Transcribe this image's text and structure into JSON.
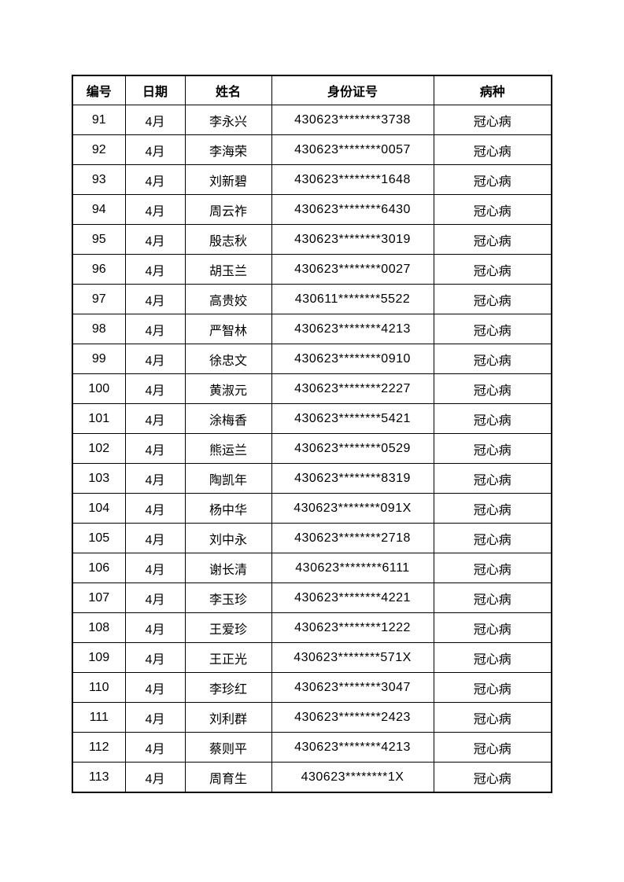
{
  "table": {
    "headers": [
      "编号",
      "日期",
      "姓名",
      "身份证号",
      "病种"
    ],
    "rows": [
      [
        "91",
        "4月",
        "李永兴",
        "430623********3738",
        "冠心病"
      ],
      [
        "92",
        "4月",
        "李海荣",
        "430623********0057",
        "冠心病"
      ],
      [
        "93",
        "4月",
        "刘新碧",
        "430623********1648",
        "冠心病"
      ],
      [
        "94",
        "4月",
        "周云祚",
        "430623********6430",
        "冠心病"
      ],
      [
        "95",
        "4月",
        "殷志秋",
        "430623********3019",
        "冠心病"
      ],
      [
        "96",
        "4月",
        "胡玉兰",
        "430623********0027",
        "冠心病"
      ],
      [
        "97",
        "4月",
        "高贵姣",
        "430611********5522",
        "冠心病"
      ],
      [
        "98",
        "4月",
        "严智林",
        "430623********4213",
        "冠心病"
      ],
      [
        "99",
        "4月",
        "徐忠文",
        "430623********0910",
        "冠心病"
      ],
      [
        "100",
        "4月",
        "黄淑元",
        "430623********2227",
        "冠心病"
      ],
      [
        "101",
        "4月",
        "涂梅香",
        "430623********5421",
        "冠心病"
      ],
      [
        "102",
        "4月",
        "熊运兰",
        "430623********0529",
        "冠心病"
      ],
      [
        "103",
        "4月",
        "陶凯年",
        "430623********8319",
        "冠心病"
      ],
      [
        "104",
        "4月",
        "杨中华",
        "430623********091X",
        "冠心病"
      ],
      [
        "105",
        "4月",
        "刘中永",
        "430623********2718",
        "冠心病"
      ],
      [
        "106",
        "4月",
        "谢长清",
        "430623********6111",
        "冠心病"
      ],
      [
        "107",
        "4月",
        "李玉珍",
        "430623********4221",
        "冠心病"
      ],
      [
        "108",
        "4月",
        "王爱珍",
        "430623********1222",
        "冠心病"
      ],
      [
        "109",
        "4月",
        "王正光",
        "430623********571X",
        "冠心病"
      ],
      [
        "110",
        "4月",
        "李珍红",
        "430623********3047",
        "冠心病"
      ],
      [
        "111",
        "4月",
        "刘利群",
        "430623********2423",
        "冠心病"
      ],
      [
        "112",
        "4月",
        "蔡则平",
        "430623********4213",
        "冠心病"
      ],
      [
        "113",
        "4月",
        "周育生",
        "430623********1X",
        "冠心病"
      ]
    ]
  }
}
